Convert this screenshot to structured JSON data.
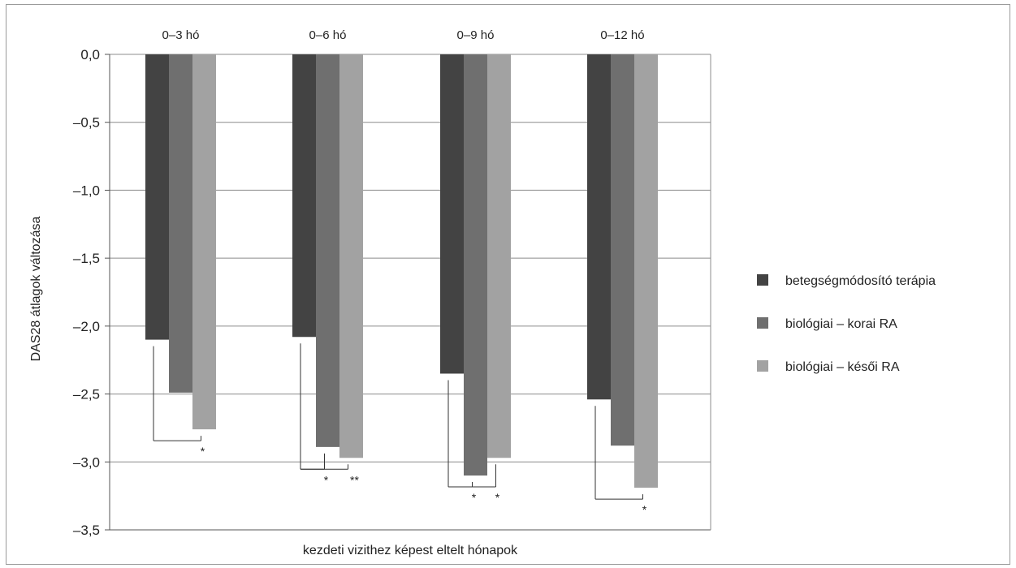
{
  "chart_data": {
    "type": "bar",
    "categories": [
      "0–3 hó",
      "0–6 hó",
      "0–9 hó",
      "0–12 hó"
    ],
    "series": [
      {
        "name": "betegségmódosító terápia",
        "color": "#434343",
        "values": [
          -2.1,
          -2.08,
          -2.35,
          -2.54
        ]
      },
      {
        "name": "biológiai – korai RA",
        "color": "#6f6f6f",
        "values": [
          -2.49,
          -2.89,
          -3.1,
          -2.88
        ]
      },
      {
        "name": "biológiai – késői RA",
        "color": "#a2a2a2",
        "values": [
          -2.76,
          -2.97,
          -2.97,
          -3.19
        ]
      }
    ],
    "ylim": [
      -3.5,
      0
    ],
    "yticks": [
      "0,0",
      "–0,5",
      "–1,0",
      "–1,5",
      "–2,0",
      "–2,5",
      "–3,0",
      "–3,5"
    ],
    "xlabel": "kezdeti vizithez képest eltelt hónapok",
    "ylabel": "DAS28 átlagok változása",
    "grid": true,
    "legend_position": "right",
    "significance": [
      {
        "category": "0–3 hó",
        "from_series": 0,
        "to_series": 2,
        "label": "*"
      },
      {
        "category": "0–6 hó",
        "from_series": 0,
        "to_series": 1,
        "label": "*"
      },
      {
        "category": "0–6 hó",
        "from_series": 0,
        "to_series": 2,
        "label": "**"
      },
      {
        "category": "0–9 hó",
        "from_series": 0,
        "to_series": 1,
        "label": "*"
      },
      {
        "category": "0–9 hó",
        "from_series": 0,
        "to_series": 2,
        "label": "*"
      },
      {
        "category": "0–12 hó",
        "from_series": 0,
        "to_series": 2,
        "label": "*"
      }
    ]
  }
}
